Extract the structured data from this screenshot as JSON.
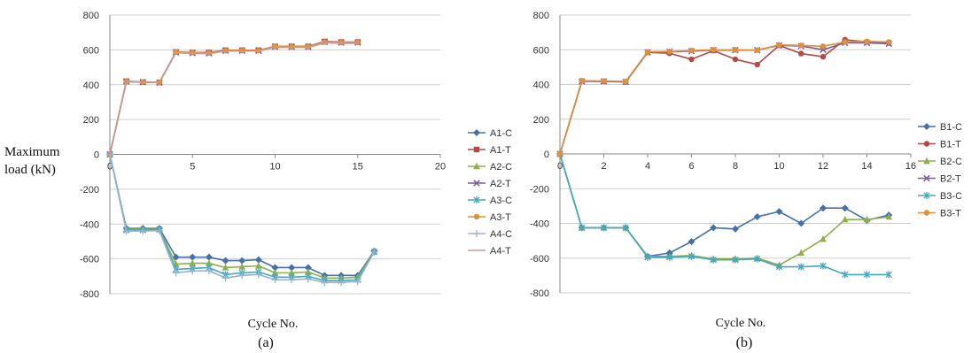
{
  "figure": {
    "ylabel_line1": "Maximum",
    "ylabel_line2": "load (kN)"
  },
  "chart_data": [
    {
      "type": "line",
      "panel_label": "(a)",
      "xlabel": "Cycle No.",
      "ylabel": "Maximum load (kN)",
      "xlim": [
        0,
        20
      ],
      "ylim": [
        -800,
        800
      ],
      "xticks": [
        0,
        5,
        10,
        15,
        20
      ],
      "yticks": [
        800,
        600,
        400,
        200,
        0,
        -200,
        -400,
        -600,
        -800
      ],
      "grid": "horizontal",
      "legend_position": "right",
      "series": [
        {
          "name": "A1-C",
          "color": "#4472a8",
          "marker": "diamond",
          "x": [
            0,
            1,
            2,
            3,
            4,
            5,
            6,
            7,
            8,
            9,
            10,
            11,
            12,
            13,
            14,
            15,
            16
          ],
          "y": [
            0,
            -425,
            -425,
            -425,
            -590,
            -590,
            -590,
            -610,
            -610,
            -605,
            -650,
            -650,
            -650,
            -695,
            -695,
            -695,
            -555
          ]
        },
        {
          "name": "A1-T",
          "color": "#b44a46",
          "marker": "square",
          "x": [
            0,
            1,
            2,
            3,
            4,
            5,
            6,
            7,
            8,
            9,
            10,
            11,
            12,
            13,
            14,
            15
          ],
          "y": [
            0,
            420,
            415,
            413,
            588,
            585,
            585,
            598,
            598,
            598,
            620,
            620,
            620,
            648,
            645,
            645
          ]
        },
        {
          "name": "A2-C",
          "color": "#8db04a",
          "marker": "triangle",
          "x": [
            0,
            1,
            2,
            3,
            4,
            5,
            6,
            7,
            8,
            9,
            10,
            11,
            12,
            13,
            14,
            15,
            16
          ],
          "y": [
            0,
            -430,
            -430,
            -430,
            -630,
            -625,
            -625,
            -650,
            -645,
            -640,
            -680,
            -680,
            -675,
            -710,
            -710,
            -705,
            -560
          ]
        },
        {
          "name": "A2-T",
          "color": "#7a5a9e",
          "marker": "x",
          "x": [
            0,
            1,
            2,
            3,
            4,
            5,
            6,
            7,
            8,
            9,
            10,
            11,
            12,
            13,
            14,
            15
          ],
          "y": [
            0,
            418,
            415,
            412,
            585,
            582,
            580,
            595,
            595,
            595,
            618,
            617,
            617,
            645,
            642,
            642
          ]
        },
        {
          "name": "A3-C",
          "color": "#45a8be",
          "marker": "star",
          "x": [
            0,
            1,
            2,
            3,
            4,
            5,
            6,
            7,
            8,
            9,
            10,
            11,
            12,
            13,
            14,
            15,
            16
          ],
          "y": [
            0,
            -435,
            -435,
            -432,
            -660,
            -655,
            -650,
            -690,
            -680,
            -675,
            -705,
            -705,
            -700,
            -725,
            -725,
            -720,
            -560
          ]
        },
        {
          "name": "A3-T",
          "color": "#e0903a",
          "marker": "circle",
          "x": [
            0,
            1,
            2,
            3,
            4,
            5,
            6,
            7,
            8,
            9,
            10,
            11,
            12,
            13,
            14,
            15
          ],
          "y": [
            0,
            418,
            415,
            413,
            588,
            585,
            582,
            596,
            596,
            596,
            620,
            618,
            618,
            645,
            643,
            643
          ]
        },
        {
          "name": "A4-C",
          "color": "#95b3d7",
          "marker": "plus",
          "x": [
            0,
            1,
            2,
            3,
            4,
            5,
            6,
            7,
            8,
            9,
            10,
            11,
            12,
            13,
            14,
            15,
            16
          ],
          "y": [
            0,
            -440,
            -440,
            -438,
            -680,
            -670,
            -668,
            -710,
            -695,
            -690,
            -720,
            -720,
            -715,
            -735,
            -735,
            -730,
            -560
          ]
        },
        {
          "name": "A4-T",
          "color": "#c89a94",
          "marker": "none",
          "x": [
            0,
            1,
            2,
            3,
            4,
            5,
            6,
            7,
            8,
            9,
            10,
            11,
            12,
            13,
            14,
            15
          ],
          "y": [
            0,
            417,
            414,
            412,
            584,
            580,
            578,
            593,
            593,
            593,
            615,
            614,
            614,
            640,
            638,
            638
          ]
        }
      ]
    },
    {
      "type": "line",
      "panel_label": "(b)",
      "xlabel": "Cycle No.",
      "ylabel": "Maximum load (kN)",
      "xlim": [
        0,
        16
      ],
      "ylim": [
        -800,
        800
      ],
      "xticks": [
        0,
        2,
        4,
        6,
        8,
        10,
        12,
        14,
        16
      ],
      "yticks": [
        800,
        600,
        400,
        200,
        0,
        -200,
        -400,
        -600,
        -800
      ],
      "grid": "horizontal",
      "legend_position": "right",
      "series": [
        {
          "name": "B1-C",
          "color": "#4472a8",
          "marker": "diamond",
          "x": [
            0,
            1,
            2,
            3,
            4,
            5,
            6,
            7,
            8,
            9,
            10,
            11,
            12,
            13,
            14,
            15
          ],
          "y": [
            0,
            -425,
            -425,
            -425,
            -590,
            -570,
            -505,
            -425,
            -432,
            -362,
            -332,
            -400,
            -312,
            -312,
            -382,
            -352
          ]
        },
        {
          "name": "B1-T",
          "color": "#b44a46",
          "marker": "circle",
          "x": [
            0,
            1,
            2,
            3,
            4,
            5,
            6,
            7,
            8,
            9,
            10,
            11,
            12,
            13,
            14,
            15
          ],
          "y": [
            0,
            420,
            418,
            415,
            585,
            580,
            545,
            595,
            545,
            515,
            625,
            578,
            560,
            658,
            645,
            640
          ]
        },
        {
          "name": "B2-C",
          "color": "#8db04a",
          "marker": "triangle",
          "x": [
            0,
            1,
            2,
            3,
            4,
            5,
            6,
            7,
            8,
            9,
            10,
            11,
            12,
            13,
            14,
            15
          ],
          "y": [
            0,
            -425,
            -425,
            -425,
            -590,
            -590,
            -585,
            -605,
            -605,
            -600,
            -640,
            -570,
            -490,
            -378,
            -378,
            -362
          ]
        },
        {
          "name": "B2-T",
          "color": "#7a5a9e",
          "marker": "x",
          "x": [
            0,
            1,
            2,
            3,
            4,
            5,
            6,
            7,
            8,
            9,
            10,
            11,
            12,
            13,
            14,
            15
          ],
          "y": [
            0,
            418,
            418,
            415,
            585,
            588,
            592,
            598,
            598,
            598,
            625,
            622,
            600,
            640,
            640,
            635
          ]
        },
        {
          "name": "B3-C",
          "color": "#45a8be",
          "marker": "star",
          "x": [
            0,
            1,
            2,
            3,
            4,
            5,
            6,
            7,
            8,
            9,
            10,
            11,
            12,
            13,
            14,
            15
          ],
          "y": [
            0,
            -425,
            -425,
            -425,
            -595,
            -595,
            -590,
            -610,
            -610,
            -605,
            -650,
            -650,
            -645,
            -695,
            -695,
            -695
          ]
        },
        {
          "name": "B3-T",
          "color": "#e0903a",
          "marker": "circle",
          "x": [
            0,
            1,
            2,
            3,
            4,
            5,
            6,
            7,
            8,
            9,
            10,
            11,
            12,
            13,
            14,
            15
          ],
          "y": [
            0,
            422,
            420,
            418,
            588,
            590,
            595,
            600,
            600,
            598,
            628,
            625,
            620,
            645,
            648,
            645
          ]
        }
      ]
    }
  ]
}
